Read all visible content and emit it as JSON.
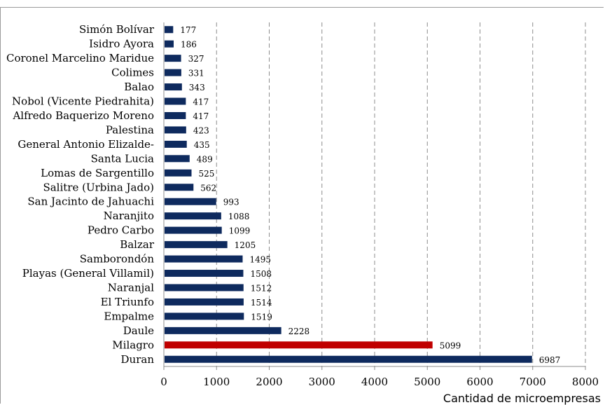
{
  "chart_data": {
    "type": "bar",
    "orientation": "horizontal",
    "xlabel": "Cantidad de microempresas",
    "xlim": [
      0,
      8000
    ],
    "xticks": [
      0,
      1000,
      2000,
      3000,
      4000,
      5000,
      6000,
      7000,
      8000
    ],
    "grid": "vertical dashed",
    "default_color": "#0e2a5e",
    "highlight_color": "#c00000",
    "highlight_category": "Milagro",
    "categories": [
      "Simón Bolívar",
      "Isidro Ayora",
      "Coronel Marcelino Maridue",
      "Colimes",
      "Balao",
      "Nobol (Vicente Piedrahita)",
      "Alfredo Baquerizo Moreno",
      "Palestina",
      "General Antonio Elizalde-",
      "Santa Lucia",
      "Lomas de Sargentillo",
      "Salitre (Urbina Jado)",
      "San Jacinto de Jahuachi",
      "Naranjito",
      "Pedro Carbo",
      "Balzar",
      "Samborondón",
      "Playas (General Villamil)",
      "Naranjal",
      "El Triunfo",
      "Empalme",
      "Daule",
      "Milagro",
      "Duran"
    ],
    "values": [
      177,
      186,
      327,
      331,
      343,
      417,
      417,
      423,
      435,
      489,
      525,
      562,
      993,
      1088,
      1099,
      1205,
      1495,
      1508,
      1512,
      1514,
      1519,
      2228,
      5099,
      6987
    ]
  }
}
